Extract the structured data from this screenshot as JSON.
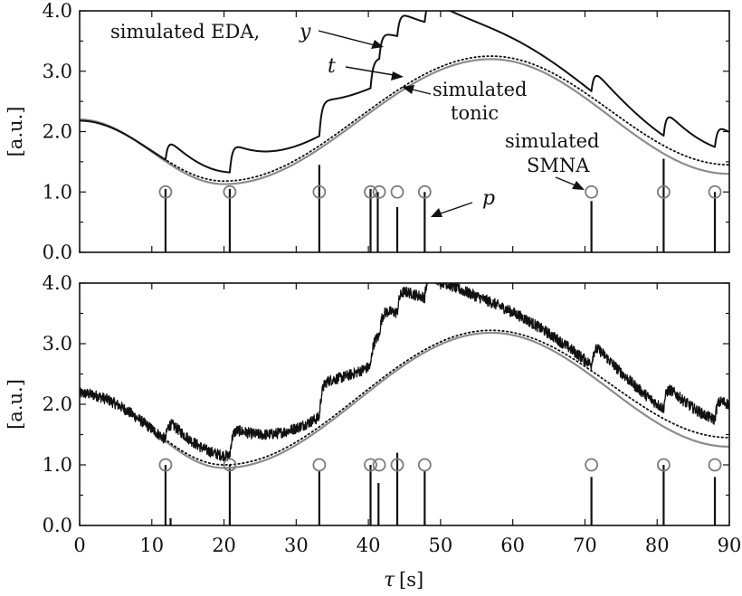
{
  "chart_data": [
    {
      "type": "line",
      "panel": "top",
      "ylabel": "[a.u.]",
      "xlim": [
        0,
        90
      ],
      "ylim": [
        0,
        4
      ],
      "xticks": [
        0,
        10,
        20,
        30,
        40,
        50,
        60,
        70,
        80,
        90
      ],
      "yticks": [
        0.0,
        1.0,
        2.0,
        3.0,
        4.0
      ],
      "ytick_labels": [
        "0.0",
        "1.0",
        "2.0",
        "3.0",
        "4.0"
      ],
      "show_xtick_labels": false,
      "annotations": [
        {
          "text": "simulated EDA, ",
          "math": "y",
          "points_to": "eda"
        },
        {
          "text": "",
          "math": "t",
          "points_to": "tonic_dotted"
        },
        {
          "text": "simulated",
          "text2": "tonic",
          "points_to": "tonic_gray"
        },
        {
          "text": "simulated",
          "text2": "SMNA",
          "points_to": "smna_marker"
        },
        {
          "text": "",
          "math": "p",
          "points_to": "spike"
        }
      ],
      "series": [
        {
          "key": "eda",
          "style": "solid-black",
          "baseline_type": "dotted_tonic",
          "pulses": [
            {
              "t": 11.9,
              "amp": 0.38
            },
            {
              "t": 20.8,
              "amp": 0.5
            },
            {
              "t": 33.2,
              "amp": 0.6
            },
            {
              "t": 40.3,
              "amp": 0.5
            },
            {
              "t": 41.5,
              "amp": 0.45
            },
            {
              "t": 44.0,
              "amp": 0.42
            },
            {
              "t": 47.8,
              "amp": 0.42
            },
            {
              "t": 70.9,
              "amp": 0.4
            },
            {
              "t": 80.9,
              "amp": 0.45
            },
            {
              "t": 88.0,
              "amp": 0.4
            }
          ],
          "decay_tau": 9.0,
          "noise": 0
        },
        {
          "key": "tonic_dotted",
          "style": "dotted-black",
          "anchors": [
            [
              0,
              2.18
            ],
            [
              20,
              1.18
            ],
            [
              57,
              3.25
            ],
            [
              90,
              1.45
            ]
          ]
        },
        {
          "key": "tonic_gray",
          "style": "solid-gray",
          "anchors": [
            [
              0,
              2.2
            ],
            [
              20,
              1.13
            ],
            [
              57,
              3.2
            ],
            [
              90,
              1.3
            ]
          ]
        },
        {
          "key": "spikes",
          "style": "spikes-black",
          "points": [
            {
              "t": 11.9,
              "h": 1.05
            },
            {
              "t": 20.8,
              "h": 1.05
            },
            {
              "t": 33.2,
              "h": 1.45
            },
            {
              "t": 40.3,
              "h": 1.05
            },
            {
              "t": 41.3,
              "h": 1.0
            },
            {
              "t": 44.0,
              "h": 0.75
            },
            {
              "t": 47.8,
              "h": 1.0
            },
            {
              "t": 70.9,
              "h": 0.85
            },
            {
              "t": 80.9,
              "h": 1.55
            },
            {
              "t": 88.0,
              "h": 1.0
            }
          ]
        },
        {
          "key": "markers",
          "style": "open-circle-gray",
          "y": 1.0,
          "x": [
            11.9,
            20.8,
            33.2,
            40.3,
            41.5,
            44.0,
            47.8,
            70.9,
            80.9,
            88.0
          ]
        }
      ]
    },
    {
      "type": "line",
      "panel": "bottom",
      "ylabel": "[a.u.]",
      "xlabel_math": "τ",
      "xlabel_unit": "[s]",
      "xlim": [
        0,
        90
      ],
      "ylim": [
        0,
        4
      ],
      "xticks": [
        0,
        10,
        20,
        30,
        40,
        50,
        60,
        70,
        80,
        90
      ],
      "xtick_labels": [
        "0",
        "10",
        "20",
        "30",
        "40",
        "50",
        "60",
        "70",
        "80",
        "90"
      ],
      "yticks": [
        0.0,
        1.0,
        2.0,
        3.0,
        4.0
      ],
      "ytick_labels": [
        "0.0",
        "1.0",
        "2.0",
        "3.0",
        "4.0"
      ],
      "show_xtick_labels": true,
      "series": [
        {
          "key": "eda_noisy",
          "style": "solid-black",
          "baseline_type": "dotted_tonic",
          "pulses": [
            {
              "t": 11.9,
              "amp": 0.38
            },
            {
              "t": 20.8,
              "amp": 0.5
            },
            {
              "t": 33.2,
              "amp": 0.6
            },
            {
              "t": 40.3,
              "amp": 0.5
            },
            {
              "t": 41.5,
              "amp": 0.45
            },
            {
              "t": 44.0,
              "amp": 0.42
            },
            {
              "t": 47.8,
              "amp": 0.42
            },
            {
              "t": 70.9,
              "amp": 0.4
            },
            {
              "t": 80.9,
              "amp": 0.45
            },
            {
              "t": 88.0,
              "amp": 0.4
            }
          ],
          "decay_tau": 9.0,
          "noise": 0.09
        },
        {
          "key": "tonic_dotted",
          "style": "dotted-black",
          "anchors": [
            [
              0,
              2.18
            ],
            [
              20,
              1.0
            ],
            [
              57,
              3.22
            ],
            [
              90,
              1.45
            ]
          ]
        },
        {
          "key": "tonic_gray",
          "style": "solid-gray",
          "anchors": [
            [
              0,
              2.2
            ],
            [
              20,
              0.95
            ],
            [
              57,
              3.18
            ],
            [
              90,
              1.3
            ]
          ]
        },
        {
          "key": "spikes",
          "style": "spikes-black",
          "points": [
            {
              "t": 11.9,
              "h": 1.0
            },
            {
              "t": 12.6,
              "h": 0.12
            },
            {
              "t": 20.8,
              "h": 1.0
            },
            {
              "t": 33.2,
              "h": 0.9
            },
            {
              "t": 40.3,
              "h": 1.0
            },
            {
              "t": 41.4,
              "h": 0.7
            },
            {
              "t": 44.0,
              "h": 1.2
            },
            {
              "t": 47.8,
              "h": 0.9
            },
            {
              "t": 70.9,
              "h": 0.8
            },
            {
              "t": 80.9,
              "h": 1.0
            },
            {
              "t": 88.0,
              "h": 0.8
            }
          ]
        },
        {
          "key": "markers",
          "style": "open-circle-gray",
          "y": 1.0,
          "x": [
            11.9,
            20.8,
            33.2,
            40.3,
            41.5,
            44.0,
            47.8,
            70.9,
            80.9,
            88.0
          ]
        }
      ]
    }
  ]
}
